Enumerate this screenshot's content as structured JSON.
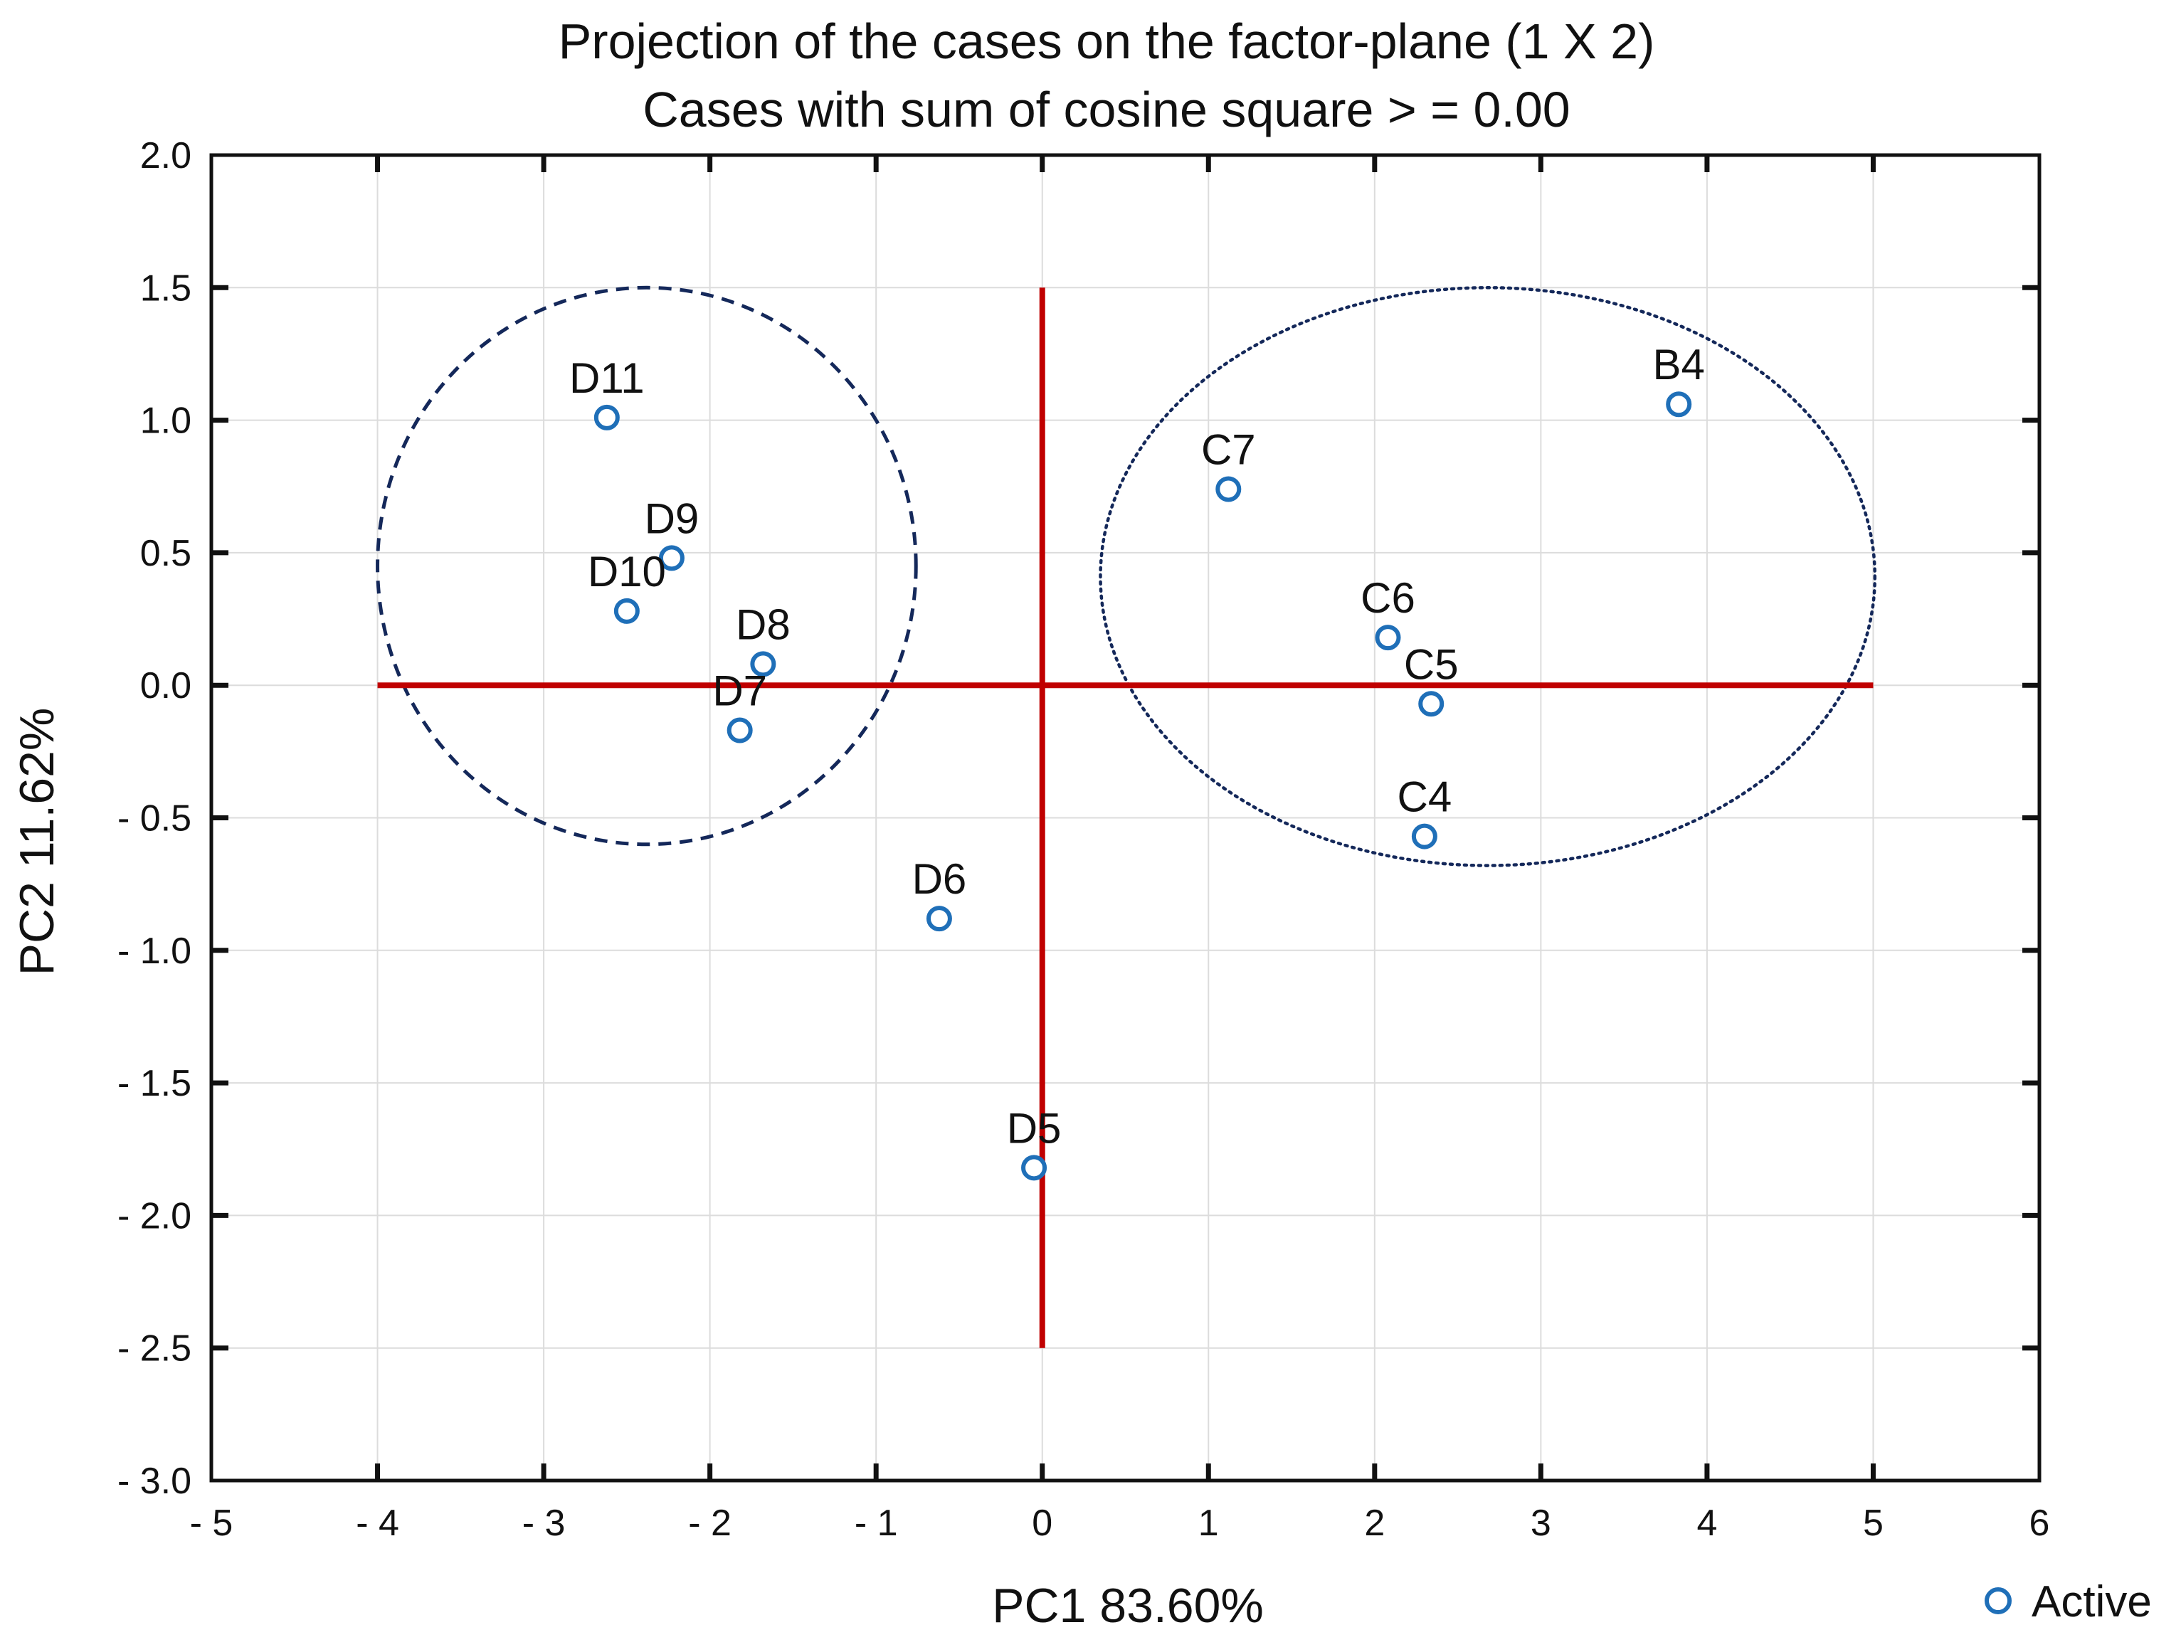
{
  "chart_data": {
    "type": "scatter",
    "title": "Projection of the cases on the factor-plane (1 X 2)",
    "subtitle": "Cases with sum of cosine square > = 0.00",
    "xlabel": "PC1 83.60%",
    "ylabel": "PC2 11.62%",
    "xlim": [
      -5,
      6
    ],
    "ylim": [
      -3,
      2
    ],
    "grid": true,
    "legend_position": "bottom-right",
    "x_ticks": [
      {
        "value": -5,
        "label": "- 5"
      },
      {
        "value": -4,
        "label": "- 4"
      },
      {
        "value": -3,
        "label": "- 3"
      },
      {
        "value": -2,
        "label": "- 2"
      },
      {
        "value": -1,
        "label": "- 1"
      },
      {
        "value": 0,
        "label": "0"
      },
      {
        "value": 1,
        "label": "1"
      },
      {
        "value": 2,
        "label": "2"
      },
      {
        "value": 3,
        "label": "3"
      },
      {
        "value": 4,
        "label": "4"
      },
      {
        "value": 5,
        "label": "5"
      },
      {
        "value": 6,
        "label": "6"
      }
    ],
    "y_ticks": [
      {
        "value": 2.0,
        "label": "2.0"
      },
      {
        "value": 1.5,
        "label": "1.5"
      },
      {
        "value": 1.0,
        "label": "1.0"
      },
      {
        "value": 0.5,
        "label": "0.5"
      },
      {
        "value": 0.0,
        "label": "0.0"
      },
      {
        "value": -0.5,
        "label": "- 0.5"
      },
      {
        "value": -1.0,
        "label": "- 1.0"
      },
      {
        "value": -1.5,
        "label": "- 1.5"
      },
      {
        "value": -2.0,
        "label": "- 2.0"
      },
      {
        "value": -2.5,
        "label": "- 2.5"
      },
      {
        "value": -3.0,
        "label": "- 3.0"
      }
    ],
    "series": [
      {
        "name": "Active",
        "color": "#1f6fb8",
        "points": [
          {
            "label": "D11",
            "x": -2.62,
            "y": 1.01
          },
          {
            "label": "D9",
            "x": -2.23,
            "y": 0.48
          },
          {
            "label": "D10",
            "x": -2.5,
            "y": 0.28
          },
          {
            "label": "D8",
            "x": -1.68,
            "y": 0.08
          },
          {
            "label": "D7",
            "x": -1.82,
            "y": -0.17
          },
          {
            "label": "D6",
            "x": -0.62,
            "y": -0.88
          },
          {
            "label": "D5",
            "x": -0.05,
            "y": -1.82
          },
          {
            "label": "C7",
            "x": 1.12,
            "y": 0.74
          },
          {
            "label": "C6",
            "x": 2.08,
            "y": 0.18
          },
          {
            "label": "C5",
            "x": 2.34,
            "y": -0.07
          },
          {
            "label": "C4",
            "x": 2.3,
            "y": -0.57
          },
          {
            "label": "B4",
            "x": 3.83,
            "y": 1.06
          }
        ]
      }
    ],
    "reference_lines": {
      "color": "#c00000",
      "horizontal": {
        "y": 0,
        "x_from": -4,
        "x_to": 5
      },
      "vertical": {
        "x": 0,
        "y_from": -2.5,
        "y_to": 1.5
      }
    },
    "ellipses": [
      {
        "name": "D group",
        "style": "dashed",
        "color": "#14285a",
        "cx": -2.38,
        "cy": 0.45,
        "rx": 1.62,
        "ry": 1.05
      },
      {
        "name": "C/B group",
        "style": "dotted",
        "color": "#14285a",
        "cx": 2.68,
        "cy": 0.41,
        "rx": 2.33,
        "ry": 1.09
      }
    ]
  }
}
